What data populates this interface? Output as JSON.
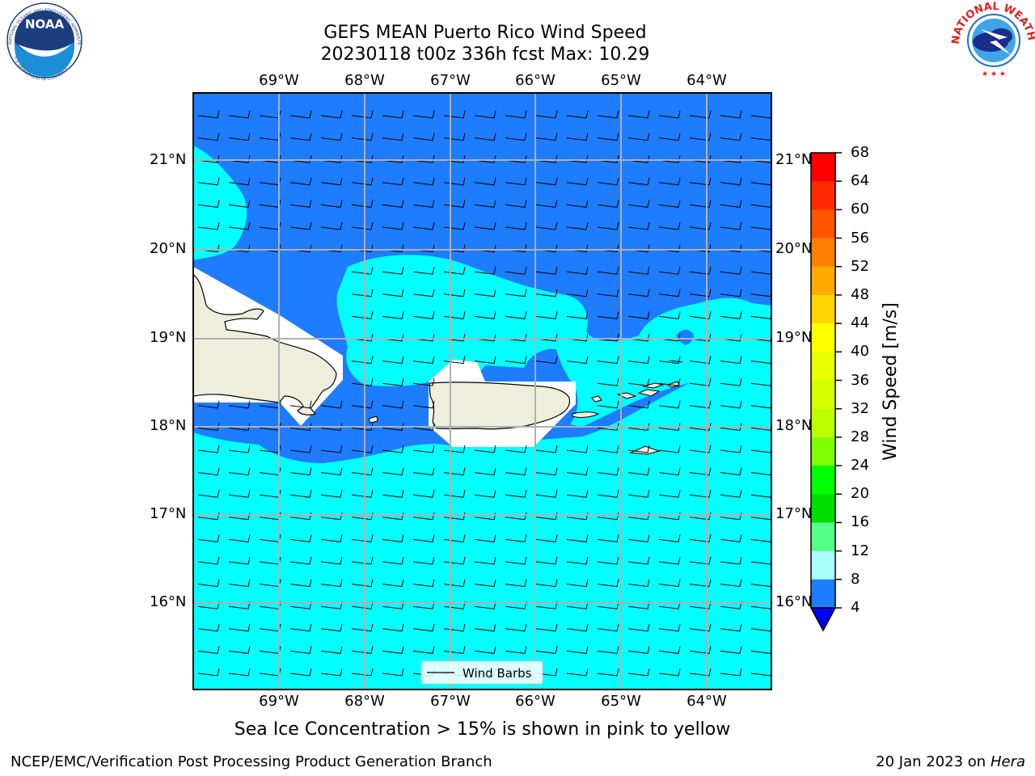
{
  "title_line1": "GEFS MEAN Puerto Rico Wind Speed",
  "title_line2": "20230118 t00z 336h fcst   Max: 10.29",
  "map": {
    "lon_labels": [
      "69°W",
      "68°W",
      "67°W",
      "66°W",
      "65°W",
      "64°W"
    ],
    "lat_labels": [
      "21°N",
      "20°N",
      "19°N",
      "18°N",
      "17°N",
      "16°N"
    ],
    "legend_label": "Wind Barbs",
    "colors": {
      "low": "#1e7cff",
      "mid": "#00ffff",
      "land": "#efeedc",
      "missing": "#ffffff"
    }
  },
  "colorbar": {
    "title": "Wind Speed [m/s]",
    "ticks": [
      "68",
      "64",
      "60",
      "56",
      "52",
      "48",
      "44",
      "40",
      "36",
      "32",
      "28",
      "24",
      "20",
      "16",
      "12",
      "8",
      "4"
    ],
    "colors": [
      "#ff0000",
      "#ff2a00",
      "#ff5500",
      "#ff8000",
      "#ffaa00",
      "#ffd400",
      "#ffff00",
      "#eaff00",
      "#d4ff00",
      "#bbff00",
      "#7fff00",
      "#00ff00",
      "#00dd00",
      "#55ff88",
      "#aaffff",
      "#55ffff",
      "#00ffff",
      "#1e7cff"
    ],
    "extend_color": "#0000ff"
  },
  "sea_ice_note": "Sea Ice Concentration > 15% is shown in pink to yellow",
  "footer_left": "NCEP/EMC/Verification Post Processing Product Generation Branch",
  "footer_right_date": "20 Jan 2023 on ",
  "footer_right_host": "Hera",
  "logos": {
    "noaa_text": "NOAA",
    "noaa_ring": "NATIONAL OCEANIC AND ATMOSPHERIC ADMINISTRATION",
    "noaa_ring_bottom": "U.S. DEPARTMENT OF COMMERCE",
    "nws_ring": "NATIONAL WEATHER SERVICE"
  }
}
